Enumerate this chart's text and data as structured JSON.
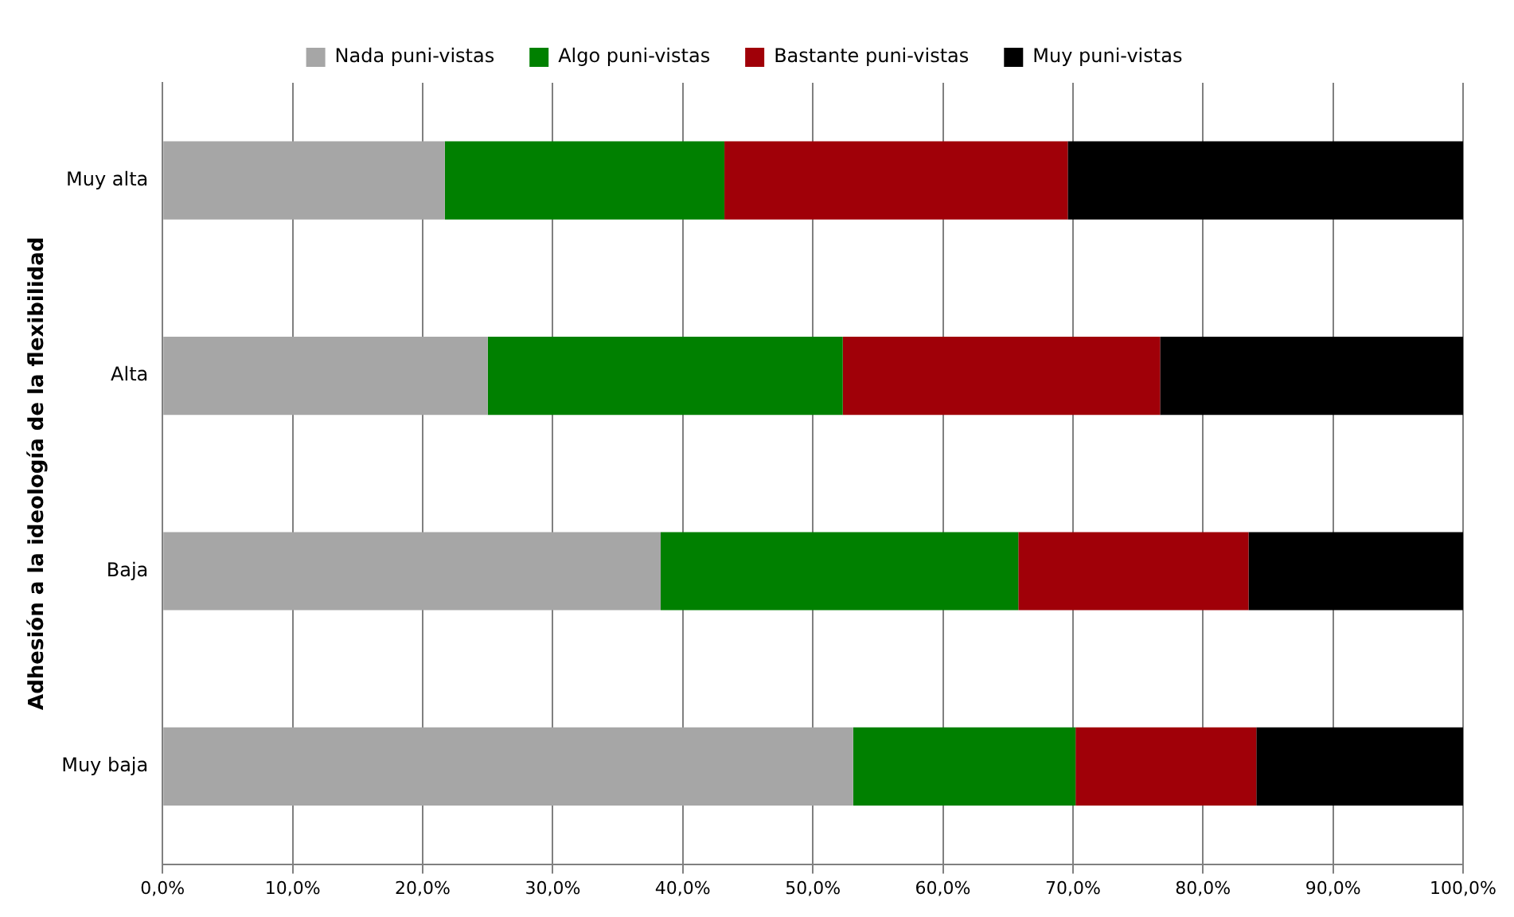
{
  "chart_data": {
    "type": "bar",
    "orientation": "horizontal",
    "stacked": true,
    "ylabel": "Adhesión a la ideología de la flexibilidad",
    "categories": [
      "Muy alta",
      "Alta",
      "Baja",
      "Muy baja"
    ],
    "series": [
      {
        "name": "Nada puni-vistas",
        "color": "#a6a6a6",
        "values": [
          21.7,
          25.0,
          38.3,
          53.1
        ]
      },
      {
        "name": "Algo puni-vistas",
        "color": "#008000",
        "values": [
          21.5,
          27.3,
          27.5,
          17.1
        ]
      },
      {
        "name": "Bastante puni-vistas",
        "color": "#a00008",
        "values": [
          26.4,
          24.4,
          17.7,
          13.9
        ]
      },
      {
        "name": "Muy puni-vistas",
        "color": "#000000",
        "values": [
          30.4,
          23.3,
          16.5,
          15.9
        ]
      }
    ],
    "xlim": [
      0,
      100
    ],
    "xticks": [
      {
        "value": 0,
        "label": "0,0%"
      },
      {
        "value": 10,
        "label": "10,0%"
      },
      {
        "value": 20,
        "label": "20,0%"
      },
      {
        "value": 30,
        "label": "30,0%"
      },
      {
        "value": 40,
        "label": "40,0%"
      },
      {
        "value": 50,
        "label": "50,0%"
      },
      {
        "value": 60,
        "label": "60,0%"
      },
      {
        "value": 70,
        "label": "70,0%"
      },
      {
        "value": 80,
        "label": "80,0%"
      },
      {
        "value": 90,
        "label": "90,0%"
      },
      {
        "value": 100,
        "label": "100,0%"
      }
    ],
    "grid": "x",
    "legend": "top"
  }
}
